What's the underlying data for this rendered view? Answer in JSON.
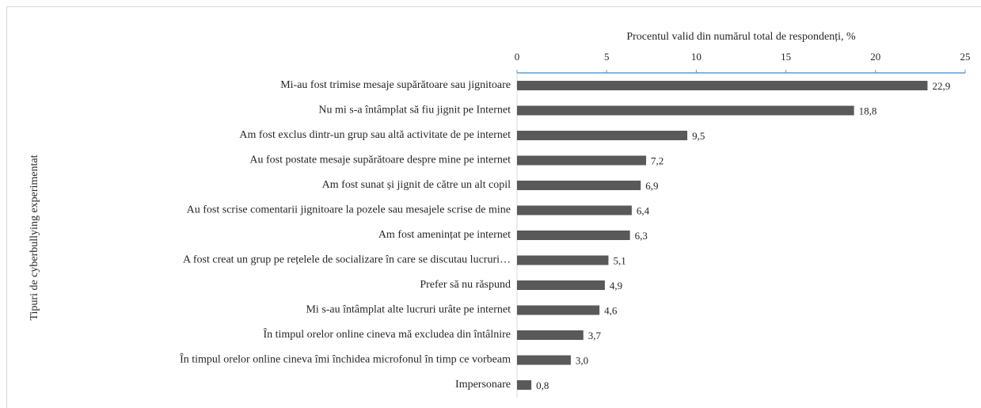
{
  "chart_data": {
    "type": "bar",
    "orientation": "horizontal",
    "x_label": "Procentul valid din numărul total de respondenți, %",
    "y_label": "Tipuri de cyberbullying experimentat",
    "categories": [
      "Mi-au fost trimise mesaje supărătoare sau jignitoare",
      "Nu mi s-a întâmplat să fiu jignit pe Internet",
      "Am fost exclus dintr-un grup sau altă activitate de pe internet",
      "Au fost postate mesaje supărătoare despre mine pe internet",
      "Am fost sunat și jignit de către un alt copil",
      "Au fost scrise comentarii jignitoare la pozele sau mesajele scrise de mine",
      "Am fost amenințat pe internet",
      "A fost creat un grup pe rețelele de socializare în care se discutau lucruri…",
      "Prefer să nu răspund",
      "Mi s-au întâmplat alte lucruri urâte pe internet",
      "În timpul orelor online cineva mă excludea din întâlnire",
      "În timpul orelor online cineva îmi închidea microfonul în timp ce vorbeam",
      "Impersonare"
    ],
    "values": [
      22.9,
      18.8,
      9.5,
      7.2,
      6.9,
      6.4,
      6.3,
      5.1,
      4.9,
      4.6,
      3.7,
      3.0,
      0.8
    ],
    "value_labels": [
      "22,9",
      "18,8",
      "9,5",
      "7,2",
      "6,9",
      "6,4",
      "6,3",
      "5,1",
      "4,9",
      "4,6",
      "3,7",
      "3,0",
      "0,8"
    ],
    "color": "#595959",
    "axis_color": "#5b9bd5",
    "xlim": [
      0,
      25
    ],
    "xticks": [
      0,
      5,
      10,
      15,
      20,
      25
    ],
    "grid": false
  }
}
